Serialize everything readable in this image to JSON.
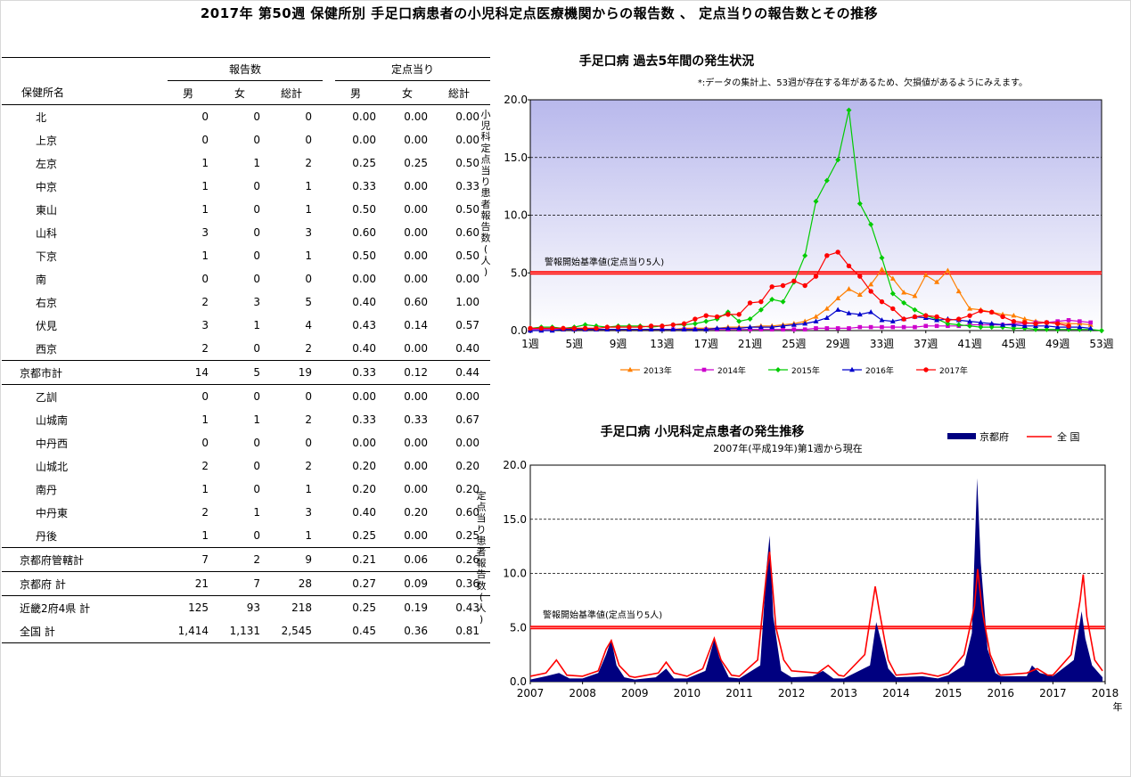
{
  "title": "2017年 第50週 保健所別 手足口病患者の小児科定点医療機関からの報告数 、 定点当りの報告数とその推移",
  "table": {
    "header_groups": [
      "報告数",
      "定点当り"
    ],
    "columns": [
      "保健所名",
      "男",
      "女",
      "総計",
      "男",
      "女",
      "総計"
    ],
    "rows": [
      {
        "name": "北",
        "values": [
          "0",
          "0",
          "0",
          "0.00",
          "0.00",
          "0.00"
        ],
        "indent": true
      },
      {
        "name": "上京",
        "values": [
          "0",
          "0",
          "0",
          "0.00",
          "0.00",
          "0.00"
        ],
        "indent": true
      },
      {
        "name": "左京",
        "values": [
          "1",
          "1",
          "2",
          "0.25",
          "0.25",
          "0.50"
        ],
        "indent": true
      },
      {
        "name": "中京",
        "values": [
          "1",
          "0",
          "1",
          "0.33",
          "0.00",
          "0.33"
        ],
        "indent": true
      },
      {
        "name": "東山",
        "values": [
          "1",
          "0",
          "1",
          "0.50",
          "0.00",
          "0.50"
        ],
        "indent": true
      },
      {
        "name": "山科",
        "values": [
          "3",
          "0",
          "3",
          "0.60",
          "0.00",
          "0.60"
        ],
        "indent": true
      },
      {
        "name": "下京",
        "values": [
          "1",
          "0",
          "1",
          "0.50",
          "0.00",
          "0.50"
        ],
        "indent": true
      },
      {
        "name": "南",
        "values": [
          "0",
          "0",
          "0",
          "0.00",
          "0.00",
          "0.00"
        ],
        "indent": true
      },
      {
        "name": "右京",
        "values": [
          "2",
          "3",
          "5",
          "0.40",
          "0.60",
          "1.00"
        ],
        "indent": true
      },
      {
        "name": "伏見",
        "values": [
          "3",
          "1",
          "4",
          "0.43",
          "0.14",
          "0.57"
        ],
        "indent": true
      },
      {
        "name": "西京",
        "values": [
          "2",
          "0",
          "2",
          "0.40",
          "0.00",
          "0.40"
        ],
        "indent": true
      },
      {
        "name": "京都市計",
        "values": [
          "14",
          "5",
          "19",
          "0.33",
          "0.12",
          "0.44"
        ],
        "indent": false
      },
      {
        "name": "乙訓",
        "values": [
          "0",
          "0",
          "0",
          "0.00",
          "0.00",
          "0.00"
        ],
        "indent": true
      },
      {
        "name": "山城南",
        "values": [
          "1",
          "1",
          "2",
          "0.33",
          "0.33",
          "0.67"
        ],
        "indent": true
      },
      {
        "name": "中丹西",
        "values": [
          "0",
          "0",
          "0",
          "0.00",
          "0.00",
          "0.00"
        ],
        "indent": true
      },
      {
        "name": "山城北",
        "values": [
          "2",
          "0",
          "2",
          "0.20",
          "0.00",
          "0.20"
        ],
        "indent": true
      },
      {
        "name": "南丹",
        "values": [
          "1",
          "0",
          "1",
          "0.20",
          "0.00",
          "0.20"
        ],
        "indent": true
      },
      {
        "name": "中丹東",
        "values": [
          "2",
          "1",
          "3",
          "0.40",
          "0.20",
          "0.60"
        ],
        "indent": true
      },
      {
        "name": "丹後",
        "values": [
          "1",
          "0",
          "1",
          "0.25",
          "0.00",
          "0.25"
        ],
        "indent": true
      },
      {
        "name": "京都府管轄計",
        "values": [
          "7",
          "2",
          "9",
          "0.21",
          "0.06",
          "0.26"
        ],
        "indent": false
      },
      {
        "name": "京都府 計",
        "values": [
          "21",
          "7",
          "28",
          "0.27",
          "0.09",
          "0.36"
        ],
        "indent": false
      },
      {
        "name": "近畿2府4県 計",
        "values": [
          "125",
          "93",
          "218",
          "0.25",
          "0.19",
          "0.43"
        ],
        "indent": false
      },
      {
        "name": "全国 計",
        "values": [
          "1,414",
          "1,131",
          "2,545",
          "0.45",
          "0.36",
          "0.81"
        ],
        "indent": false
      }
    ]
  },
  "chart_data": [
    {
      "type": "line",
      "title": "手足口病 過去5年間の発生状況",
      "note": "*:データの集計上、53週が存在する年があるため、欠損値があるようにみえます。",
      "ylabel": "小児科定点当り患者報告数(人)",
      "ylim": [
        0,
        20
      ],
      "yticks": [
        "0.0",
        "5.0",
        "10.0",
        "15.0",
        "20.0"
      ],
      "xticks": [
        "1週",
        "5週",
        "9週",
        "13週",
        "17週",
        "21週",
        "25週",
        "29週",
        "33週",
        "37週",
        "41週",
        "45週",
        "49週",
        "53週"
      ],
      "threshold": {
        "value": 5,
        "label": "警報開始基準値(定点当り5人)"
      },
      "colors": {
        "2013年": "#ff7f00",
        "2014年": "#cc00cc",
        "2015年": "#00cc00",
        "2016年": "#0000cc",
        "2017年": "#ff0000",
        "threshold": "#ff0000"
      },
      "series": [
        {
          "name": "2013年",
          "values": [
            0.1,
            0.1,
            0.1,
            0.1,
            0.1,
            0.1,
            0.1,
            0.1,
            0.1,
            0.1,
            0.1,
            0.1,
            0.1,
            0.1,
            0.2,
            0.2,
            0.2,
            0.2,
            0.3,
            0.3,
            0.3,
            0.4,
            0.4,
            0.5,
            0.6,
            0.8,
            1.2,
            1.9,
            2.8,
            3.6,
            3.1,
            4.0,
            5.3,
            4.5,
            3.3,
            3.0,
            4.8,
            4.2,
            5.2,
            3.4,
            1.9,
            1.8,
            1.6,
            1.4,
            1.3,
            1.0,
            0.8,
            0.7,
            0.7,
            0.6,
            0.6,
            0.5
          ]
        },
        {
          "name": "2014年",
          "values": [
            0.1,
            0.1,
            0.1,
            0.1,
            0.1,
            0.1,
            0.1,
            0.1,
            0.1,
            0.1,
            0.1,
            0.1,
            0.1,
            0.1,
            0.1,
            0.1,
            0.1,
            0.1,
            0.1,
            0.1,
            0.1,
            0.1,
            0.1,
            0.1,
            0.1,
            0.1,
            0.2,
            0.2,
            0.2,
            0.2,
            0.3,
            0.3,
            0.3,
            0.3,
            0.3,
            0.3,
            0.4,
            0.4,
            0.4,
            0.4,
            0.5,
            0.5,
            0.5,
            0.5,
            0.6,
            0.6,
            0.7,
            0.7,
            0.8,
            0.9,
            0.8,
            0.7
          ]
        },
        {
          "name": "2015年",
          "values": [
            0.2,
            0.3,
            0.3,
            0.2,
            0.3,
            0.5,
            0.4,
            0.3,
            0.4,
            0.4,
            0.4,
            0.3,
            0.4,
            0.5,
            0.5,
            0.6,
            0.8,
            1.0,
            1.6,
            0.8,
            1.0,
            1.8,
            2.7,
            2.5,
            4.2,
            6.5,
            11.2,
            13.0,
            14.8,
            19.1,
            11.0,
            9.2,
            6.3,
            3.2,
            2.4,
            1.8,
            1.3,
            1.0,
            0.6,
            0.5,
            0.4,
            0.3,
            0.3,
            0.3,
            0.2,
            0.2,
            0.1,
            0.1,
            0.1,
            0.1,
            0.1,
            0.1,
            0.0
          ]
        },
        {
          "name": "2016年",
          "values": [
            0.0,
            0.0,
            0.0,
            0.1,
            0.1,
            0.1,
            0.1,
            0.1,
            0.1,
            0.1,
            0.1,
            0.1,
            0.1,
            0.1,
            0.1,
            0.1,
            0.1,
            0.2,
            0.2,
            0.2,
            0.3,
            0.3,
            0.3,
            0.4,
            0.5,
            0.6,
            0.8,
            1.1,
            1.8,
            1.5,
            1.4,
            1.6,
            0.9,
            0.8,
            1.0,
            1.2,
            1.1,
            0.9,
            1.0,
            0.9,
            0.8,
            0.7,
            0.6,
            0.5,
            0.5,
            0.4,
            0.4,
            0.4,
            0.3,
            0.3,
            0.3,
            0.2
          ]
        },
        {
          "name": "2017年",
          "values": [
            0.2,
            0.2,
            0.2,
            0.2,
            0.2,
            0.2,
            0.2,
            0.3,
            0.3,
            0.3,
            0.3,
            0.4,
            0.4,
            0.5,
            0.6,
            1.0,
            1.3,
            1.2,
            1.4,
            1.4,
            2.4,
            2.5,
            3.8,
            3.9,
            4.3,
            3.9,
            4.7,
            6.5,
            6.8,
            5.6,
            4.7,
            3.4,
            2.5,
            1.9,
            1.0,
            1.2,
            1.3,
            1.2,
            0.9,
            1.0,
            1.3,
            1.7,
            1.6,
            1.2,
            0.8,
            0.7,
            0.6,
            0.7,
            0.6,
            0.4
          ]
        }
      ]
    },
    {
      "type": "area",
      "title": "手足口病 小児科定点患者の発生推移",
      "subtitle": "2007年(平成19年)第1週から現在",
      "ylabel": "定点当り患者報告数(人)",
      "xlabel_unit": "年",
      "ylim": [
        0,
        20
      ],
      "yticks": [
        "0.0",
        "5.0",
        "10.0",
        "15.0",
        "20.0"
      ],
      "xticks": [
        "2007",
        "2008",
        "2009",
        "2010",
        "2011",
        "2012",
        "2013",
        "2014",
        "2015",
        "2016",
        "2017",
        "2018"
      ],
      "threshold": {
        "value": 5,
        "label": "警報開始基準値(定点当り5人)"
      },
      "colors": {
        "京都府": "#000080",
        "全 国": "#ff0000"
      },
      "series": [
        {
          "name": "京都府",
          "points": [
            [
              2007.0,
              0.2
            ],
            [
              2007.3,
              0.5
            ],
            [
              2007.55,
              0.8
            ],
            [
              2007.75,
              0.3
            ],
            [
              2008.0,
              0.3
            ],
            [
              2008.3,
              0.8
            ],
            [
              2008.45,
              2.5
            ],
            [
              2008.55,
              3.9
            ],
            [
              2008.65,
              1.5
            ],
            [
              2008.8,
              0.4
            ],
            [
              2009.0,
              0.2
            ],
            [
              2009.4,
              0.4
            ],
            [
              2009.6,
              1.2
            ],
            [
              2009.75,
              0.3
            ],
            [
              2010.0,
              0.3
            ],
            [
              2010.35,
              1.0
            ],
            [
              2010.52,
              3.9
            ],
            [
              2010.62,
              2.2
            ],
            [
              2010.8,
              0.4
            ],
            [
              2011.0,
              0.3
            ],
            [
              2011.4,
              1.5
            ],
            [
              2011.52,
              10.5
            ],
            [
              2011.58,
              13.5
            ],
            [
              2011.65,
              6.0
            ],
            [
              2011.8,
              1.0
            ],
            [
              2012.0,
              0.4
            ],
            [
              2012.4,
              0.5
            ],
            [
              2012.6,
              1.0
            ],
            [
              2012.8,
              0.3
            ],
            [
              2013.0,
              0.3
            ],
            [
              2013.5,
              1.5
            ],
            [
              2013.62,
              5.5
            ],
            [
              2013.7,
              4.0
            ],
            [
              2013.85,
              1.2
            ],
            [
              2014.0,
              0.4
            ],
            [
              2014.5,
              0.5
            ],
            [
              2014.8,
              0.3
            ],
            [
              2015.0,
              0.6
            ],
            [
              2015.3,
              1.5
            ],
            [
              2015.45,
              4.5
            ],
            [
              2015.55,
              18.8
            ],
            [
              2015.62,
              11.0
            ],
            [
              2015.75,
              3.0
            ],
            [
              2015.9,
              0.8
            ],
            [
              2016.0,
              0.5
            ],
            [
              2016.5,
              0.5
            ],
            [
              2016.6,
              1.5
            ],
            [
              2016.75,
              0.8
            ],
            [
              2017.0,
              0.5
            ],
            [
              2017.4,
              2.0
            ],
            [
              2017.55,
              6.5
            ],
            [
              2017.62,
              4.0
            ],
            [
              2017.75,
              1.5
            ],
            [
              2017.95,
              0.4
            ]
          ]
        },
        {
          "name": "全 国",
          "points": [
            [
              2007.0,
              0.5
            ],
            [
              2007.3,
              0.8
            ],
            [
              2007.5,
              2.0
            ],
            [
              2007.7,
              0.6
            ],
            [
              2008.0,
              0.5
            ],
            [
              2008.3,
              1.0
            ],
            [
              2008.45,
              3.0
            ],
            [
              2008.55,
              3.8
            ],
            [
              2008.7,
              1.5
            ],
            [
              2008.9,
              0.5
            ],
            [
              2009.0,
              0.4
            ],
            [
              2009.45,
              0.8
            ],
            [
              2009.6,
              1.8
            ],
            [
              2009.75,
              0.8
            ],
            [
              2010.0,
              0.5
            ],
            [
              2010.3,
              1.2
            ],
            [
              2010.52,
              4.0
            ],
            [
              2010.65,
              2.0
            ],
            [
              2010.85,
              0.6
            ],
            [
              2011.0,
              0.5
            ],
            [
              2011.35,
              2.0
            ],
            [
              2011.52,
              10.0
            ],
            [
              2011.58,
              12.0
            ],
            [
              2011.7,
              5.0
            ],
            [
              2011.85,
              2.0
            ],
            [
              2012.0,
              1.0
            ],
            [
              2012.5,
              0.8
            ],
            [
              2012.7,
              1.5
            ],
            [
              2012.9,
              0.6
            ],
            [
              2013.0,
              0.5
            ],
            [
              2013.4,
              2.5
            ],
            [
              2013.6,
              8.8
            ],
            [
              2013.68,
              6.5
            ],
            [
              2013.85,
              2.0
            ],
            [
              2014.0,
              0.6
            ],
            [
              2014.5,
              0.8
            ],
            [
              2014.8,
              0.5
            ],
            [
              2015.0,
              0.8
            ],
            [
              2015.3,
              2.5
            ],
            [
              2015.5,
              7.0
            ],
            [
              2015.56,
              10.4
            ],
            [
              2015.65,
              6.5
            ],
            [
              2015.8,
              2.5
            ],
            [
              2015.95,
              0.8
            ],
            [
              2016.0,
              0.6
            ],
            [
              2016.5,
              0.8
            ],
            [
              2016.7,
              1.2
            ],
            [
              2016.9,
              0.6
            ],
            [
              2017.0,
              0.6
            ],
            [
              2017.35,
              2.5
            ],
            [
              2017.52,
              7.5
            ],
            [
              2017.58,
              9.9
            ],
            [
              2017.65,
              6.0
            ],
            [
              2017.8,
              2.0
            ],
            [
              2017.95,
              1.0
            ]
          ]
        }
      ]
    }
  ]
}
